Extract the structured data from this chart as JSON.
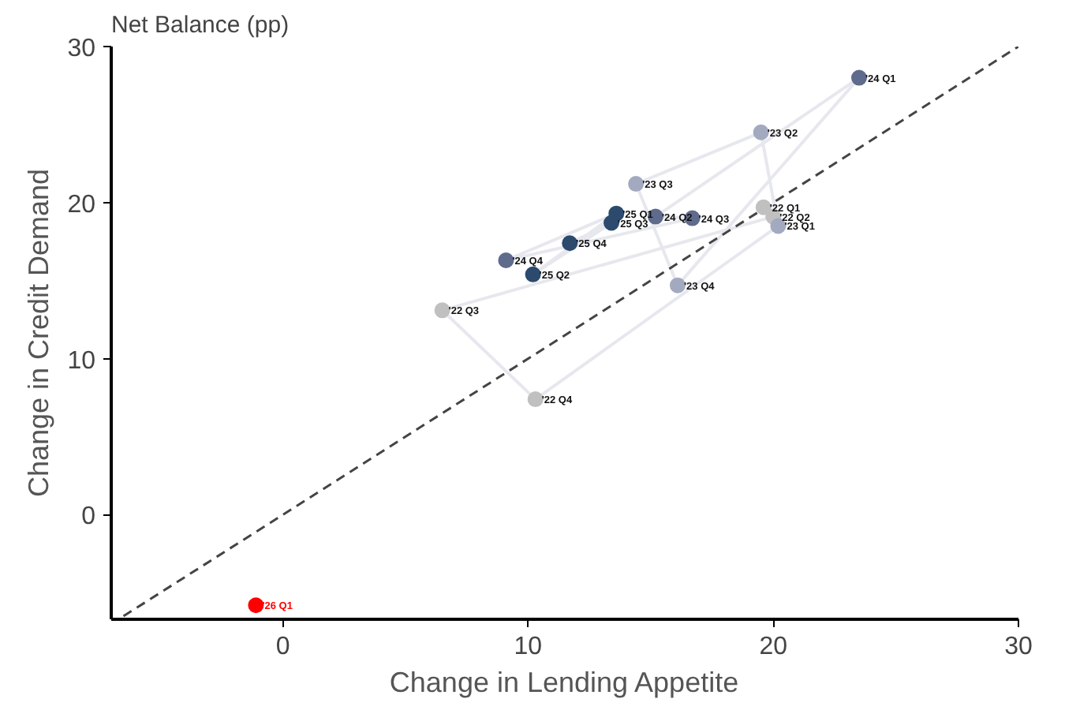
{
  "chart_data": {
    "type": "scatter",
    "title": "Net Balance (pp)",
    "xlabel": "Change in Lending Appetite",
    "ylabel": "Change in Credit Demand",
    "xlim": [
      -7,
      30
    ],
    "ylim": [
      -6.7,
      30
    ],
    "xticks": [
      0,
      10,
      20,
      30
    ],
    "yticks": [
      0,
      10,
      20,
      30
    ],
    "grid": false,
    "marker": "circle",
    "series": [
      {
        "type": "line",
        "marker": "none",
        "color": "#e6e8ee",
        "line_style": "solid",
        "x": [
          19.6,
          20.0,
          6.5,
          10.3,
          20.2,
          19.5,
          14.4,
          16.1,
          23.5,
          15.2,
          16.7,
          9.1,
          13.6,
          10.2,
          13.4,
          11.7
        ],
        "values": [
          19.7,
          19.1,
          13.1,
          7.4,
          18.5,
          24.5,
          21.2,
          14.7,
          28.0,
          19.1,
          19.0,
          16.3,
          19.3,
          15.4,
          18.7,
          17.4
        ]
      },
      {
        "type": "line",
        "marker": "none",
        "color": "#444444",
        "line_style": "dashed",
        "x": [
          -6.5,
          30
        ],
        "values": [
          -6.5,
          30
        ]
      },
      {
        "x": [
          19.6,
          20.0,
          6.5,
          10.3,
          20.2,
          19.5,
          14.4,
          16.1,
          23.5,
          15.2,
          16.7,
          9.1,
          13.6,
          10.2,
          13.4,
          11.7,
          -1.1
        ],
        "values": [
          19.7,
          19.1,
          13.1,
          7.4,
          18.5,
          24.5,
          21.2,
          14.7,
          28.0,
          19.1,
          19.0,
          16.3,
          19.3,
          15.4,
          18.7,
          17.4,
          -5.8
        ],
        "colors": [
          "#c0c0c0",
          "#c0c0c0",
          "#c0c0c0",
          "#c0c0c0",
          "#a3aac0",
          "#a3aac0",
          "#a3aac0",
          "#a3aac0",
          "#5f6b8c",
          "#5f6b8c",
          "#5f6b8c",
          "#5f6b8c",
          "#2c4a6e",
          "#2c4a6e",
          "#2c4a6e",
          "#2c4a6e",
          "#ff0000"
        ]
      }
    ],
    "annotations": [
      {
        "text": "'22 Q1",
        "x": 19.6,
        "y": 19.7
      },
      {
        "text": "'22 Q2",
        "x": 20.0,
        "y": 19.1
      },
      {
        "text": "'22 Q3",
        "x": 6.5,
        "y": 13.1
      },
      {
        "text": "'22 Q4",
        "x": 10.3,
        "y": 7.4
      },
      {
        "text": "'23 Q1",
        "x": 20.2,
        "y": 18.5
      },
      {
        "text": "'23 Q2",
        "x": 19.5,
        "y": 24.5
      },
      {
        "text": "'23 Q3",
        "x": 14.4,
        "y": 21.2
      },
      {
        "text": "'23 Q4",
        "x": 16.1,
        "y": 14.7
      },
      {
        "text": "'24 Q1",
        "x": 23.5,
        "y": 28.0
      },
      {
        "text": "'24 Q2",
        "x": 15.2,
        "y": 19.1
      },
      {
        "text": "'24 Q3",
        "x": 16.7,
        "y": 19.0
      },
      {
        "text": "'24 Q4",
        "x": 9.1,
        "y": 16.3
      },
      {
        "text": "'25 Q1",
        "x": 13.6,
        "y": 19.3
      },
      {
        "text": "'25 Q2",
        "x": 10.2,
        "y": 15.4
      },
      {
        "text": "'25 Q3",
        "x": 13.4,
        "y": 18.7
      },
      {
        "text": "'25 Q4",
        "x": 11.7,
        "y": 17.4
      },
      {
        "text": "'26 Q1",
        "x": -1.1,
        "y": -5.8
      }
    ]
  }
}
